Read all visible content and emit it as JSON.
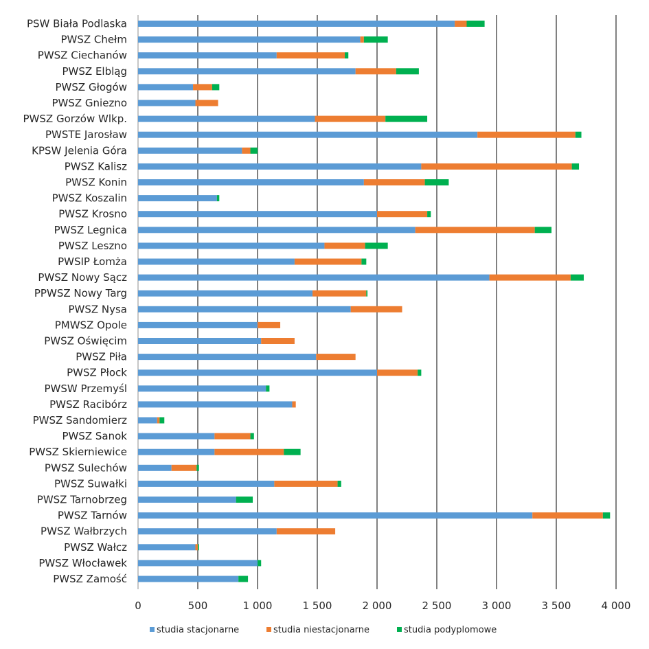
{
  "chart_data": {
    "type": "bar",
    "orientation": "horizontal",
    "stacked": true,
    "title": "",
    "xlabel": "",
    "ylabel": "",
    "xlim": [
      0,
      4000
    ],
    "xticks": [
      0,
      500,
      1000,
      1500,
      2000,
      2500,
      3000,
      3500,
      4000
    ],
    "xtick_labels": [
      "0",
      "500",
      "1 000",
      "1 500",
      "2 000",
      "2 500",
      "3 000",
      "3 500",
      "4 000"
    ],
    "grid": "vertical",
    "legend_position": "bottom",
    "categories": [
      "PSW Biała Podlaska",
      "PWSZ Chełm",
      "PWSZ Ciechanów",
      "PWSZ Elbląg",
      "PWSZ Głogów",
      "PWSZ Gniezno",
      "PWSZ Gorzów Wlkp.",
      "PWSTE Jarosław",
      "KPSW Jelenia Góra",
      "PWSZ Kalisz",
      "PWSZ Konin",
      "PWSZ Koszalin",
      "PWSZ Krosno",
      "PWSZ Legnica",
      "PWSZ Leszno",
      "PWSIP Łomża",
      "PWSZ Nowy Sącz",
      "PPWSZ Nowy Targ",
      "PWSZ Nysa",
      "PMWSZ Opole",
      "PWSZ Oświęcim",
      "PWSZ Piła",
      "PWSZ Płock",
      "PWSW Przemyśl",
      "PWSZ Racibórz",
      "PWSZ Sandomierz",
      "PWSZ Sanok",
      "PWSZ Skierniewice",
      "PWSZ Sulechów",
      "PWSZ Suwałki",
      "PWSZ Tarnobrzeg",
      "PWSZ Tarnów",
      "PWSZ Wałbrzych",
      "PWSZ Wałcz",
      "PWSZ Włocławek",
      "PWSZ Zamość"
    ],
    "series": [
      {
        "name": "studia stacjonarne",
        "color": "#5b9bd5",
        "values": [
          2650,
          1860,
          1160,
          1820,
          460,
          480,
          1480,
          2840,
          870,
          2370,
          1890,
          660,
          2000,
          2320,
          1560,
          1310,
          2940,
          1460,
          1780,
          1000,
          1030,
          1490,
          2000,
          1070,
          1290,
          160,
          640,
          640,
          280,
          1140,
          820,
          3300,
          1160,
          480,
          1000,
          840
        ]
      },
      {
        "name": "studia niestacjonarne",
        "color": "#ed7d31",
        "values": [
          100,
          30,
          570,
          340,
          160,
          190,
          590,
          820,
          70,
          1260,
          510,
          0,
          420,
          1000,
          340,
          560,
          680,
          450,
          430,
          190,
          280,
          330,
          340,
          0,
          30,
          20,
          300,
          580,
          210,
          530,
          0,
          590,
          490,
          20,
          0,
          0
        ]
      },
      {
        "name": "studia podyplomowe",
        "color": "#00b050",
        "values": [
          150,
          200,
          30,
          190,
          60,
          0,
          350,
          50,
          60,
          60,
          200,
          20,
          30,
          140,
          190,
          40,
          110,
          10,
          0,
          0,
          0,
          0,
          30,
          30,
          0,
          40,
          30,
          140,
          20,
          30,
          140,
          60,
          0,
          10,
          30,
          80
        ]
      }
    ]
  }
}
